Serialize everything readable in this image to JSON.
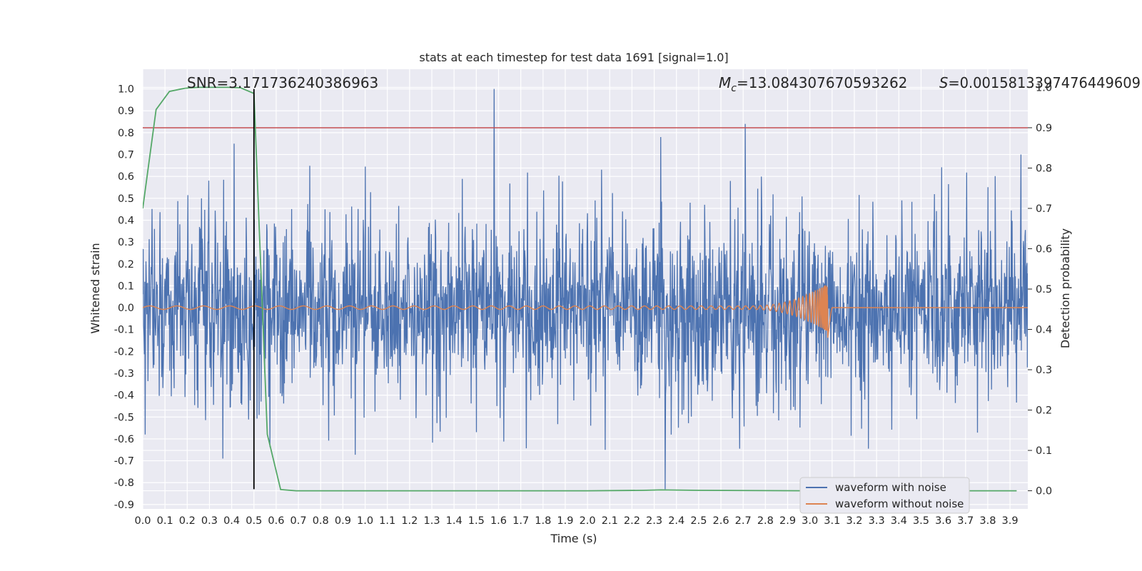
{
  "chart_data": {
    "type": "line",
    "title": "stats at each timestep for test data 1691 [signal=1.0]",
    "xlabel": "Time (s)",
    "ylabel_left": "Whitened strain",
    "ylabel_right": "Detection probability",
    "xlim": [
      0.0,
      3.98
    ],
    "ylim_left": [
      -0.92,
      1.09
    ],
    "ylim_right": [
      -0.045,
      1.045
    ],
    "x_ticks": [
      "0.0",
      "0.1",
      "0.2",
      "0.3",
      "0.4",
      "0.5",
      "0.6",
      "0.7",
      "0.8",
      "0.9",
      "1.0",
      "1.1",
      "1.2",
      "1.3",
      "1.4",
      "1.5",
      "1.6",
      "1.7",
      "1.8",
      "1.9",
      "2.0",
      "2.1",
      "2.2",
      "2.3",
      "2.4",
      "2.5",
      "2.6",
      "2.7",
      "2.8",
      "2.9",
      "3.0",
      "3.1",
      "3.2",
      "3.3",
      "3.4",
      "3.5",
      "3.6",
      "3.7",
      "3.8",
      "3.9"
    ],
    "y_ticks_left": [
      "1.0",
      "0.9",
      "0.8",
      "0.7",
      "0.6",
      "0.5",
      "0.4",
      "0.3",
      "0.2",
      "0.1",
      "0.0",
      "-0.1",
      "-0.2",
      "-0.3",
      "-0.4",
      "-0.5",
      "-0.6",
      "-0.7",
      "-0.8",
      "-0.9"
    ],
    "y_ticks_right": [
      "1.0",
      "0.9",
      "0.8",
      "0.7",
      "0.6",
      "0.5",
      "0.4",
      "0.3",
      "0.2",
      "0.1",
      "0.0"
    ],
    "annotations": {
      "snr": "SNR=3.171736240386963",
      "mc_symbol": "M",
      "mc_sub": "c",
      "mc_value": "=13.084307670593262",
      "s_symbol": "S",
      "s_value": "=0.0015813397476449609"
    },
    "series": [
      {
        "name": "waveform with noise",
        "color": "#4c72b0",
        "axis": "left",
        "kind": "noise",
        "amplitude_typical": 0.3,
        "spikes": [
          {
            "x": 1.58,
            "y": 1.0
          },
          {
            "x": 2.71,
            "y": 0.84
          },
          {
            "x": 2.33,
            "y": 0.78
          },
          {
            "x": 0.41,
            "y": 0.75
          },
          {
            "x": 3.95,
            "y": 0.7
          },
          {
            "x": 2.35,
            "y": -0.83
          },
          {
            "x": 0.36,
            "y": -0.69
          },
          {
            "x": 2.08,
            "y": -0.65
          },
          {
            "x": 0.01,
            "y": -0.58
          }
        ]
      },
      {
        "name": "waveform without noise",
        "color": "#dd8452",
        "axis": "left",
        "kind": "chirp",
        "merger_time": 3.08,
        "peak_amplitude": 0.11
      },
      {
        "name": "detection probability",
        "color": "#55a868",
        "axis": "right",
        "legend": false,
        "x": [
          0.0,
          0.06,
          0.12,
          0.19,
          0.25,
          0.31,
          0.38,
          0.44,
          0.5,
          0.56,
          0.62,
          0.69,
          0.75,
          1.0,
          1.5,
          2.0,
          2.25,
          2.33,
          2.5,
          3.0,
          3.5,
          3.93
        ],
        "y": [
          0.7,
          0.945,
          0.99,
          0.998,
          1.0,
          1.0,
          1.0,
          0.999,
          0.985,
          0.14,
          0.003,
          0.0,
          0.0,
          0.0,
          0.0,
          0.0,
          0.001,
          0.002,
          0.001,
          0.0,
          0.0,
          0.0
        ]
      }
    ],
    "threshold_line": {
      "axis": "right",
      "y": 0.9,
      "color": "#c44e52"
    },
    "vertical_marker": {
      "x": 0.5,
      "y_from": -0.83,
      "y_to": 1.0,
      "color": "#000000"
    },
    "legend": {
      "position": "lower-right",
      "entries": [
        {
          "label": "waveform with noise",
          "color": "#4c72b0"
        },
        {
          "label": "waveform without noise",
          "color": "#dd8452"
        }
      ]
    },
    "style": {
      "axes_bg": "#eaeaf2",
      "grid_color": "#ffffff"
    }
  }
}
